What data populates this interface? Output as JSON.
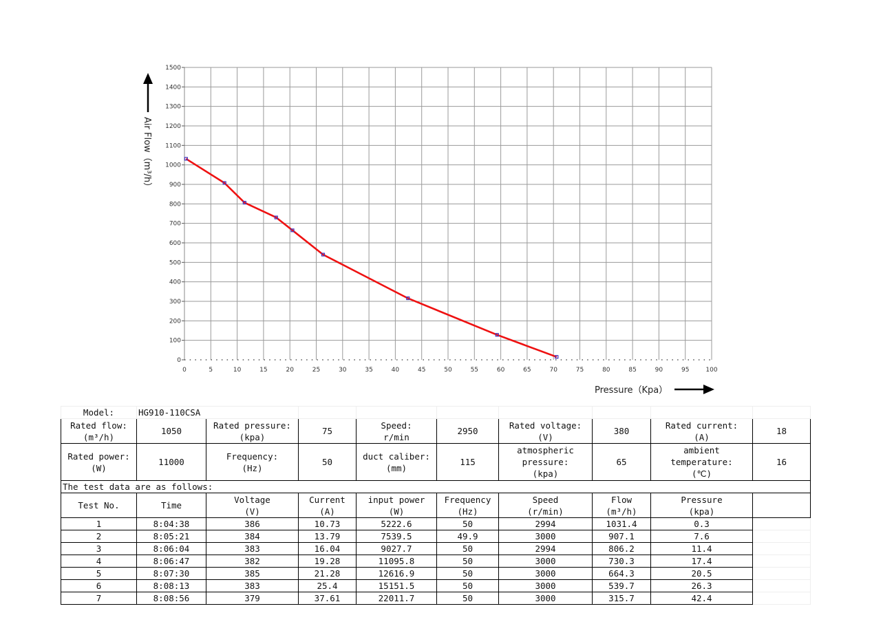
{
  "chart_data": {
    "type": "line",
    "xlabel": "Pressure（Kpa）",
    "ylabel": "Air Flow（m³/h）",
    "xlim": [
      0,
      100
    ],
    "ylim": [
      0,
      1500
    ],
    "x_ticks": [
      0,
      5,
      10,
      15,
      20,
      25,
      30,
      35,
      40,
      45,
      50,
      55,
      60,
      65,
      70,
      75,
      80,
      85,
      90,
      95,
      100
    ],
    "y_ticks": [
      0,
      100,
      200,
      300,
      400,
      500,
      600,
      700,
      800,
      900,
      1000,
      1100,
      1200,
      1300,
      1400,
      1500
    ],
    "grid": true,
    "line_color": "#ee1111",
    "marker_color": "#4433bb",
    "series": [
      {
        "x": [
          0.3,
          7.6,
          11.4,
          17.4,
          20.5,
          26.3,
          42.4,
          59.3,
          70.6
        ],
        "y": [
          1031.4,
          907.1,
          806.2,
          730.3,
          664.3,
          539.7,
          315.7,
          128,
          15
        ]
      }
    ]
  },
  "info": {
    "model_label": "Model:",
    "model_value": "HG910-110CSA",
    "rated_flow_label": "Rated flow:",
    "rated_flow_unit": "(m³/h)",
    "rated_flow_value": "1050",
    "rated_pressure_label": "Rated pressure:",
    "rated_pressure_unit": "(kpa)",
    "rated_pressure_value": "75",
    "speed_label": "Speed:",
    "speed_unit": "r/min",
    "speed_value": "2950",
    "rated_voltage_label": "Rated voltage:",
    "rated_voltage_unit": "(V)",
    "rated_voltage_value": "380",
    "rated_current_label": "Rated current:",
    "rated_current_unit": "(A)",
    "rated_current_value": "18",
    "rated_power_label": "Rated power:",
    "rated_power_unit": "(W)",
    "rated_power_value": "11000",
    "frequency_label": "Frequency:",
    "frequency_unit": "(Hz)",
    "frequency_value": "50",
    "duct_label": "duct caliber:",
    "duct_unit": "(mm)",
    "duct_value": "115",
    "atm_label_1": "atmospheric",
    "atm_label_2": "pressure:",
    "atm_unit": "(kpa)",
    "atm_value": "65",
    "amb_label_1": "ambient",
    "amb_label_2": "temperature:",
    "amb_unit": "(℃)",
    "amb_value": "16",
    "test_intro": "The test data are as follows:"
  },
  "test_table": {
    "headers": [
      {
        "l1": "Test No.",
        "l2": ""
      },
      {
        "l1": "Time",
        "l2": ""
      },
      {
        "l1": "Voltage",
        "l2": "(V)"
      },
      {
        "l1": "Current",
        "l2": "(A)"
      },
      {
        "l1": "input power",
        "l2": "(W)"
      },
      {
        "l1": "Frequency",
        "l2": "(Hz)"
      },
      {
        "l1": "Speed",
        "l2": "(r/min)"
      },
      {
        "l1": "Flow",
        "l2": "(m³/h)"
      },
      {
        "l1": "Pressure",
        "l2": "(kpa)"
      }
    ],
    "rows": [
      [
        "1",
        "8:04:38",
        "386",
        "10.73",
        "5222.6",
        "50",
        "2994",
        "1031.4",
        "0.3"
      ],
      [
        "2",
        "8:05:21",
        "384",
        "13.79",
        "7539.5",
        "49.9",
        "3000",
        "907.1",
        "7.6"
      ],
      [
        "3",
        "8:06:04",
        "383",
        "16.04",
        "9027.7",
        "50",
        "2994",
        "806.2",
        "11.4"
      ],
      [
        "4",
        "8:06:47",
        "382",
        "19.28",
        "11095.8",
        "50",
        "3000",
        "730.3",
        "17.4"
      ],
      [
        "5",
        "8:07:30",
        "385",
        "21.28",
        "12616.9",
        "50",
        "3000",
        "664.3",
        "20.5"
      ],
      [
        "6",
        "8:08:13",
        "383",
        "25.4",
        "15151.5",
        "50",
        "3000",
        "539.7",
        "26.3"
      ],
      [
        "7",
        "8:08:56",
        "379",
        "37.61",
        "22011.7",
        "50",
        "3000",
        "315.7",
        "42.4"
      ]
    ]
  }
}
